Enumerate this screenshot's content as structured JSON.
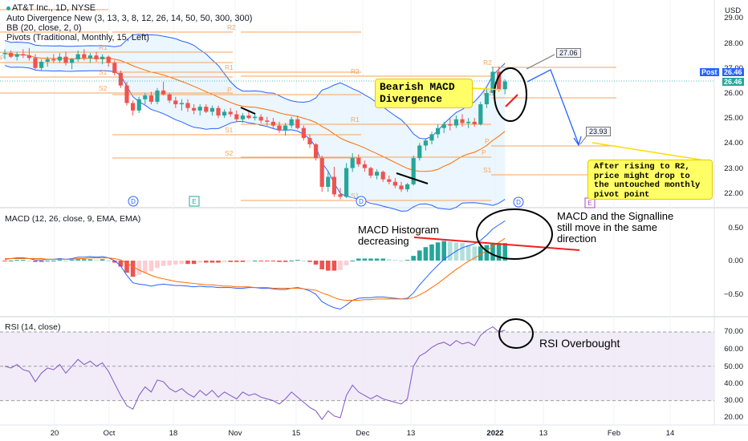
{
  "header": {
    "symbol_line": "AT&T Inc., 1D, NYSE",
    "indicators": [
      "Auto Divergence New (3, 13, 3, 8, 12, 26, 14, 50, 50, 300, 300)",
      "BB (20, close, 2, 0)",
      "Pivots (Traditional, Monthly, 15, Left)"
    ],
    "currency": "USD"
  },
  "panes": {
    "macd_title": "MACD (12, 26, close, 9, EMA, EMA)",
    "rsi_title": "RSI (14, close)"
  },
  "price_axis": [
    "29.00",
    "28.00",
    "27.00",
    "26.00",
    "25.00",
    "24.00",
    "23.00",
    "22.00"
  ],
  "macd_axis": [
    "0.50",
    "0.00",
    "−0.50"
  ],
  "rsi_axis": [
    "70.00",
    "60.00",
    "50.00",
    "40.00",
    "30.00",
    "20.00"
  ],
  "time_axis": [
    "20",
    "Oct",
    "18",
    "Nov",
    "15",
    "Dec",
    "13",
    "2022",
    "13",
    "Feb",
    "14"
  ],
  "price_tags": {
    "post_label": "Post",
    "post_value": "26.46",
    "last_value": "26.46"
  },
  "callouts": {
    "high": "27.06",
    "target": "23.93"
  },
  "pivot_labels": {
    "left": [
      "R2",
      "R1",
      "P",
      "S1",
      "S2"
    ],
    "mid": [
      "R2",
      "R1",
      "P",
      "S1",
      "S2",
      "S1"
    ],
    "right": [
      "R2",
      "R1",
      "P",
      "S1"
    ]
  },
  "event_markers": [
    "D",
    "E",
    "D",
    "D",
    "E"
  ],
  "annotations": {
    "bearish": "Bearish MACD\nDivergence",
    "after_r2": "After rising to R2,\nprice might drop to\nthe untouched monthly\npivot point",
    "hist_decreasing": "MACD Histogram\ndecreasing",
    "macd_signal": "MACD and the Signalline\nstill move in the same\ndirection",
    "rsi_overbought": "RSI Overbought"
  },
  "colors": {
    "up": "#26a69a",
    "down": "#ef5350",
    "pivot": "#f7a35c",
    "bb_band": "#2962ff",
    "bb_basis": "#ff6d00",
    "bb_fill": "#e3f2fd",
    "macd": "#2962ff",
    "signal": "#ff6d00",
    "rsi": "#7e57c2",
    "note_bg": "#ffff66",
    "post_tag": "#2962ff",
    "last_tag": "#26a69a"
  },
  "chart_data": [
    {
      "type": "candlestick",
      "title": "AT&T Inc., 1D, NYSE",
      "ylim": [
        21.6,
        29.5
      ],
      "x": [
        "Sep 13",
        "Sep 14",
        "Sep 15",
        "Sep 16",
        "Sep 17",
        "Sep 20",
        "Sep 21",
        "Sep 22",
        "Sep 23",
        "Sep 24",
        "Sep 27",
        "Sep 28",
        "Sep 29",
        "Sep 30",
        "Oct 1",
        "Oct 4",
        "Oct 5",
        "Oct 6",
        "Oct 7",
        "Oct 8",
        "Oct 11",
        "Oct 12",
        "Oct 13",
        "Oct 14",
        "Oct 15",
        "Oct 18",
        "Oct 19",
        "Oct 20",
        "Oct 21",
        "Oct 22",
        "Oct 25",
        "Oct 26",
        "Oct 27",
        "Oct 28",
        "Oct 29",
        "Nov 1",
        "Nov 2",
        "Nov 3",
        "Nov 4",
        "Nov 5",
        "Nov 8",
        "Nov 9",
        "Nov 10",
        "Nov 11",
        "Nov 12",
        "Nov 15",
        "Nov 16",
        "Nov 17",
        "Nov 18",
        "Nov 19",
        "Nov 22",
        "Nov 23",
        "Nov 24",
        "Nov 26",
        "Nov 29",
        "Nov 30",
        "Dec 1",
        "Dec 2",
        "Dec 3",
        "Dec 6",
        "Dec 7",
        "Dec 8",
        "Dec 9",
        "Dec 10",
        "Dec 13",
        "Dec 14",
        "Dec 15",
        "Dec 16",
        "Dec 17",
        "Dec 20",
        "Dec 21",
        "Dec 22",
        "Dec 23",
        "Dec 27",
        "Dec 28",
        "Dec 29",
        "Dec 30",
        "Dec 31",
        "Jan 3",
        "Jan 4",
        "Jan 5",
        "Jan 6",
        "Jan 7"
      ],
      "ohlc": [
        [
          27.55,
          27.75,
          27.35,
          27.6
        ],
        [
          27.6,
          27.7,
          27.4,
          27.45
        ],
        [
          27.45,
          27.65,
          27.3,
          27.55
        ],
        [
          27.55,
          27.75,
          27.4,
          27.5
        ],
        [
          27.5,
          27.8,
          27.3,
          27.4
        ],
        [
          27.4,
          27.55,
          26.95,
          27.0
        ],
        [
          27.0,
          27.35,
          26.9,
          27.25
        ],
        [
          27.25,
          27.45,
          27.05,
          27.35
        ],
        [
          27.35,
          27.55,
          27.2,
          27.3
        ],
        [
          27.3,
          27.6,
          27.2,
          27.45
        ],
        [
          27.45,
          27.65,
          27.1,
          27.2
        ],
        [
          27.2,
          27.4,
          26.95,
          27.35
        ],
        [
          27.35,
          27.7,
          27.25,
          27.55
        ],
        [
          27.55,
          27.75,
          27.3,
          27.4
        ],
        [
          27.4,
          27.6,
          27.2,
          27.5
        ],
        [
          27.5,
          27.65,
          27.25,
          27.35
        ],
        [
          27.35,
          27.55,
          27.15,
          27.45
        ],
        [
          27.45,
          27.5,
          27.05,
          27.2
        ],
        [
          27.2,
          27.3,
          26.7,
          26.8
        ],
        [
          26.8,
          26.9,
          26.2,
          26.3
        ],
        [
          26.3,
          26.45,
          25.5,
          25.6
        ],
        [
          25.6,
          25.7,
          25.1,
          25.3
        ],
        [
          25.3,
          25.85,
          25.2,
          25.75
        ],
        [
          25.75,
          26.0,
          25.55,
          25.9
        ],
        [
          25.9,
          26.05,
          25.55,
          25.65
        ],
        [
          25.65,
          26.2,
          25.55,
          26.1
        ],
        [
          26.1,
          26.45,
          25.9,
          25.95
        ],
        [
          25.95,
          26.0,
          25.6,
          25.7
        ],
        [
          25.7,
          25.85,
          25.4,
          25.55
        ],
        [
          25.55,
          25.75,
          25.3,
          25.6
        ],
        [
          25.6,
          25.75,
          25.25,
          25.4
        ],
        [
          25.4,
          25.55,
          25.15,
          25.3
        ],
        [
          25.3,
          25.55,
          25.1,
          25.45
        ],
        [
          25.45,
          25.55,
          25.2,
          25.25
        ],
        [
          25.25,
          25.5,
          25.1,
          25.4
        ],
        [
          25.4,
          25.5,
          25.0,
          25.1
        ],
        [
          25.1,
          25.35,
          25.0,
          25.25
        ],
        [
          25.25,
          25.4,
          25.05,
          25.15
        ],
        [
          25.15,
          25.3,
          24.85,
          24.95
        ],
        [
          24.95,
          25.2,
          24.8,
          25.1
        ],
        [
          25.1,
          25.25,
          24.95,
          25.0
        ],
        [
          25.0,
          25.2,
          24.9,
          25.05
        ],
        [
          25.05,
          25.15,
          24.8,
          24.9
        ],
        [
          24.9,
          25.05,
          24.7,
          24.85
        ],
        [
          24.85,
          25.0,
          24.6,
          24.7
        ],
        [
          24.7,
          24.85,
          24.4,
          24.5
        ],
        [
          24.5,
          24.8,
          24.3,
          24.7
        ],
        [
          24.7,
          25.05,
          24.6,
          24.95
        ],
        [
          24.95,
          25.1,
          24.55,
          24.6
        ],
        [
          24.6,
          24.7,
          24.1,
          24.2
        ],
        [
          24.2,
          24.35,
          23.8,
          23.95
        ],
        [
          23.95,
          24.0,
          23.3,
          23.4
        ],
        [
          23.4,
          23.5,
          22.05,
          22.25
        ],
        [
          22.25,
          22.9,
          22.05,
          22.65
        ],
        [
          22.65,
          23.05,
          21.85,
          21.95
        ],
        [
          21.95,
          22.2,
          21.75,
          21.85
        ],
        [
          21.85,
          23.2,
          21.8,
          23.0
        ],
        [
          23.0,
          23.6,
          22.85,
          23.4
        ],
        [
          23.4,
          23.55,
          23.05,
          23.15
        ],
        [
          23.15,
          23.3,
          22.85,
          23.0
        ],
        [
          23.0,
          23.05,
          22.6,
          22.7
        ],
        [
          22.7,
          22.95,
          22.55,
          22.85
        ],
        [
          22.85,
          22.9,
          22.45,
          22.55
        ],
        [
          22.55,
          22.7,
          22.35,
          22.45
        ],
        [
          22.45,
          22.6,
          22.2,
          22.3
        ],
        [
          22.3,
          22.45,
          22.05,
          22.15
        ],
        [
          22.15,
          22.4,
          22.05,
          22.35
        ],
        [
          22.35,
          23.5,
          22.3,
          23.4
        ],
        [
          23.4,
          24.0,
          23.3,
          23.9
        ],
        [
          23.9,
          24.2,
          23.7,
          24.1
        ],
        [
          24.1,
          24.45,
          23.95,
          24.35
        ],
        [
          24.35,
          24.75,
          24.2,
          24.6
        ],
        [
          24.6,
          24.85,
          24.4,
          24.75
        ],
        [
          24.75,
          25.0,
          24.5,
          24.7
        ],
        [
          24.7,
          25.1,
          24.6,
          24.95
        ],
        [
          24.95,
          25.15,
          24.65,
          24.8
        ],
        [
          24.8,
          25.0,
          24.6,
          24.85
        ],
        [
          24.85,
          25.0,
          24.65,
          24.75
        ],
        [
          24.75,
          25.65,
          24.7,
          25.55
        ],
        [
          25.55,
          26.2,
          25.4,
          26.0
        ],
        [
          26.0,
          27.05,
          25.9,
          26.85
        ],
        [
          26.85,
          27.06,
          26.05,
          26.15
        ],
        [
          26.15,
          26.55,
          25.95,
          26.46
        ]
      ]
    },
    {
      "type": "line",
      "title": "MACD (12, 26, close, 9, EMA, EMA)",
      "ylim": [
        -0.75,
        0.8
      ],
      "series": [
        {
          "name": "MACD",
          "values": [
            0.02,
            0.03,
            0.04,
            0.04,
            0.03,
            0.01,
            0.01,
            0.02,
            0.02,
            0.03,
            0.02,
            0.03,
            0.05,
            0.05,
            0.06,
            0.05,
            0.06,
            0.04,
            0.0,
            -0.08,
            -0.22,
            -0.33,
            -0.35,
            -0.36,
            -0.38,
            -0.36,
            -0.35,
            -0.36,
            -0.37,
            -0.37,
            -0.38,
            -0.39,
            -0.38,
            -0.39,
            -0.39,
            -0.4,
            -0.4,
            -0.4,
            -0.41,
            -0.41,
            -0.4,
            -0.4,
            -0.41,
            -0.41,
            -0.42,
            -0.43,
            -0.43,
            -0.41,
            -0.4,
            -0.42,
            -0.45,
            -0.5,
            -0.61,
            -0.66,
            -0.7,
            -0.72,
            -0.66,
            -0.59,
            -0.56,
            -0.55,
            -0.55,
            -0.54,
            -0.54,
            -0.55,
            -0.56,
            -0.57,
            -0.56,
            -0.48,
            -0.36,
            -0.26,
            -0.16,
            -0.07,
            0.02,
            0.08,
            0.14,
            0.19,
            0.22,
            0.25,
            0.3,
            0.38,
            0.47,
            0.53,
            0.59
          ]
        },
        {
          "name": "Signal",
          "values": [
            0.03,
            0.03,
            0.03,
            0.03,
            0.03,
            0.03,
            0.03,
            0.02,
            0.02,
            0.02,
            0.02,
            0.02,
            0.03,
            0.03,
            0.04,
            0.04,
            0.04,
            0.04,
            0.03,
            0.01,
            -0.04,
            -0.09,
            -0.14,
            -0.18,
            -0.22,
            -0.25,
            -0.27,
            -0.29,
            -0.31,
            -0.32,
            -0.33,
            -0.34,
            -0.35,
            -0.36,
            -0.36,
            -0.37,
            -0.38,
            -0.38,
            -0.39,
            -0.39,
            -0.39,
            -0.4,
            -0.4,
            -0.4,
            -0.41,
            -0.41,
            -0.41,
            -0.41,
            -0.41,
            -0.42,
            -0.43,
            -0.44,
            -0.48,
            -0.51,
            -0.55,
            -0.58,
            -0.59,
            -0.59,
            -0.59,
            -0.58,
            -0.58,
            -0.57,
            -0.57,
            -0.57,
            -0.57,
            -0.57,
            -0.57,
            -0.55,
            -0.51,
            -0.46,
            -0.4,
            -0.34,
            -0.27,
            -0.2,
            -0.13,
            -0.07,
            -0.01,
            0.04,
            0.09,
            0.15,
            0.21,
            0.27,
            0.33
          ]
        },
        {
          "name": "Histogram",
          "values": [
            -0.01,
            0.0,
            0.01,
            0.01,
            0.0,
            -0.02,
            -0.02,
            0.0,
            0.0,
            0.01,
            0.0,
            0.01,
            0.02,
            0.02,
            0.02,
            0.01,
            0.02,
            0.0,
            -0.03,
            -0.09,
            -0.18,
            -0.24,
            -0.21,
            -0.18,
            -0.16,
            -0.11,
            -0.08,
            -0.07,
            -0.06,
            -0.05,
            -0.05,
            -0.05,
            -0.03,
            -0.03,
            -0.03,
            -0.03,
            -0.02,
            -0.02,
            -0.02,
            -0.02,
            -0.01,
            0.0,
            -0.01,
            -0.01,
            -0.01,
            -0.02,
            -0.02,
            0.0,
            0.01,
            0.0,
            -0.02,
            -0.06,
            -0.13,
            -0.15,
            -0.15,
            -0.14,
            -0.07,
            0.0,
            0.03,
            0.03,
            0.03,
            0.03,
            0.03,
            0.02,
            0.01,
            0.0,
            0.01,
            0.07,
            0.15,
            0.2,
            0.24,
            0.27,
            0.29,
            0.28,
            0.27,
            0.26,
            0.23,
            0.21,
            0.21,
            0.23,
            0.26,
            0.26,
            0.26
          ]
        }
      ]
    },
    {
      "type": "line",
      "title": "RSI (14, close)",
      "ylim": [
        15,
        75
      ],
      "series": [
        {
          "name": "RSI",
          "values": [
            50,
            49,
            51,
            48,
            47,
            41,
            46,
            49,
            48,
            51,
            46,
            50,
            54,
            51,
            53,
            50,
            52,
            47,
            40,
            33,
            27,
            25,
            33,
            38,
            35,
            42,
            41,
            37,
            35,
            37,
            34,
            32,
            36,
            33,
            36,
            32,
            35,
            33,
            31,
            35,
            33,
            34,
            32,
            31,
            30,
            28,
            31,
            35,
            32,
            29,
            26,
            24,
            19,
            24,
            21,
            20,
            33,
            39,
            35,
            33,
            31,
            33,
            31,
            30,
            29,
            28,
            31,
            50,
            56,
            58,
            61,
            63,
            64,
            62,
            65,
            63,
            64,
            62,
            68,
            71,
            73,
            70,
            71
          ]
        }
      ],
      "reference_lines": [
        70,
        50,
        30
      ]
    }
  ]
}
